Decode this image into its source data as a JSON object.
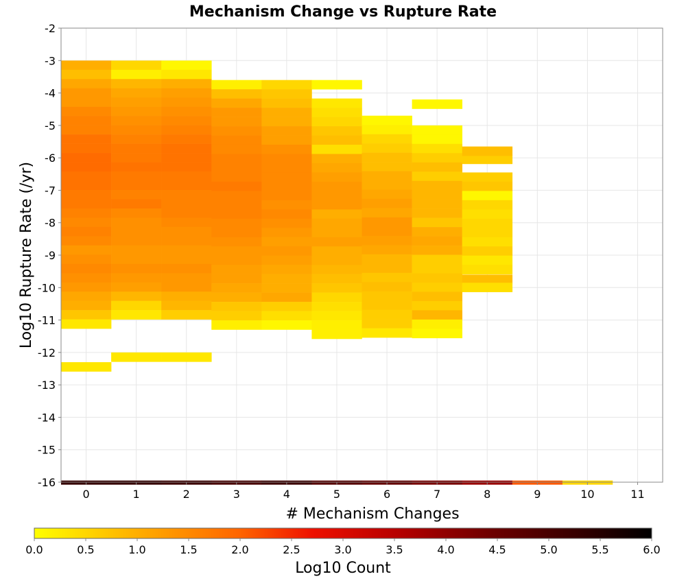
{
  "chart_data": {
    "type": "heatmap",
    "title": "Mechanism Change vs Rupture Rate",
    "xlabel": "# Mechanism Changes",
    "ylabel": "Log10 Rupture Rate (/yr)",
    "xlim": [
      -0.5,
      11.5
    ],
    "ylim": [
      -16,
      -2
    ],
    "x_ticks": [
      "0",
      "1",
      "2",
      "3",
      "4",
      "5",
      "6",
      "7",
      "8",
      "9",
      "10",
      "11"
    ],
    "y_ticks": [
      "-2",
      "-3",
      "-4",
      "-5",
      "-6",
      "-7",
      "-8",
      "-9",
      "-10",
      "-11",
      "-12",
      "-13",
      "-14",
      "-15",
      "-16"
    ],
    "grid": true,
    "bin_height": 0.285,
    "colorbar": {
      "label": "Log10 Count",
      "range": [
        0.0,
        6.0
      ],
      "ticks": [
        "0.0",
        "0.5",
        "1.0",
        "1.5",
        "2.0",
        "2.5",
        "3.0",
        "3.5",
        "4.0",
        "4.5",
        "5.0",
        "5.5",
        "6.0"
      ],
      "colors": [
        "#ffff00",
        "#ffae00",
        "#ff6400",
        "#ee1100",
        "#b80000",
        "#700000",
        "#340000",
        "#000000"
      ],
      "stops": [
        0.0,
        1.0,
        2.0,
        2.7,
        3.5,
        4.4,
        5.3,
        6.0
      ]
    },
    "columns": [
      {
        "x": 0,
        "top": -3.0,
        "values": [
          1.0,
          0.8,
          1.1,
          1.3,
          1.3,
          1.5,
          1.6,
          1.6,
          1.8,
          1.8,
          1.9,
          1.9,
          1.8,
          1.8,
          1.7,
          1.7,
          1.6,
          1.5,
          1.6,
          1.5,
          1.3,
          1.4,
          1.5,
          1.4,
          1.3,
          1.1,
          1.0,
          0.7,
          0.3
        ],
        "extra": [
          {
            "y": -12.3,
            "v": 0.3
          }
        ]
      },
      {
        "x": 1,
        "top": -3.0,
        "values": [
          0.5,
          0.2,
          0.9,
          1.1,
          1.2,
          1.3,
          1.4,
          1.5,
          1.6,
          1.7,
          1.7,
          1.8,
          1.7,
          1.7,
          1.6,
          1.7,
          1.5,
          1.4,
          1.4,
          1.4,
          1.3,
          1.3,
          1.4,
          1.3,
          1.2,
          0.9,
          0.5,
          0.3
        ],
        "extra": [
          {
            "y": -12.0,
            "v": 0.3
          }
        ]
      },
      {
        "x": 2,
        "top": -3.0,
        "values": [
          0.1,
          0.3,
          1.0,
          1.2,
          1.3,
          1.4,
          1.5,
          1.6,
          1.7,
          1.8,
          1.8,
          1.8,
          1.7,
          1.7,
          1.6,
          1.6,
          1.6,
          1.5,
          1.4,
          1.4,
          1.3,
          1.3,
          1.4,
          1.3,
          1.3,
          1.0,
          0.9,
          0.6
        ],
        "extra": [
          {
            "y": -12.0,
            "v": 0.3
          }
        ]
      },
      {
        "x": 3,
        "top": -3.6,
        "values": [
          0.2,
          0.8,
          1.1,
          1.3,
          1.3,
          1.4,
          1.5,
          1.5,
          1.6,
          1.6,
          1.6,
          1.7,
          1.6,
          1.6,
          1.6,
          1.5,
          1.5,
          1.4,
          1.3,
          1.3,
          1.2,
          1.2,
          1.1,
          1.0,
          0.7,
          0.6,
          0.2
        ],
        "extra": []
      },
      {
        "x": 4,
        "top": -3.6,
        "values": [
          0.5,
          0.7,
          0.8,
          1.0,
          1.0,
          1.2,
          1.2,
          1.4,
          1.5,
          1.5,
          1.5,
          1.5,
          1.5,
          1.4,
          1.5,
          1.4,
          1.3,
          1.2,
          1.3,
          1.2,
          1.1,
          1.0,
          1.0,
          1.1,
          0.6,
          0.4,
          0.1
        ],
        "extra": []
      },
      {
        "x": 5,
        "top": -3.6,
        "values": [
          0.1,
          -1,
          0.3,
          0.4,
          0.5,
          0.7,
          0.8,
          0.4,
          1.0,
          1.1,
          1.2,
          1.3,
          1.3,
          1.3,
          1.0,
          1.1,
          1.1,
          1.2,
          1.0,
          1.0,
          0.9,
          0.8,
          0.7,
          0.5,
          0.4,
          0.3,
          0.2,
          0.2
        ],
        "extra": []
      },
      {
        "x": 6,
        "top": -4.7,
        "values": [
          0.1,
          0.2,
          0.5,
          0.6,
          0.8,
          0.8,
          1.0,
          1.0,
          1.1,
          1.2,
          1.1,
          1.3,
          1.3,
          1.2,
          1.1,
          0.9,
          0.9,
          0.7,
          0.8,
          0.7,
          0.7,
          0.6,
          0.6,
          0.3
        ],
        "extra": []
      },
      {
        "x": 7,
        "top": -5.0,
        "values": [
          0.1,
          0.1,
          0.4,
          0.6,
          0.8,
          0.6,
          0.9,
          0.9,
          0.9,
          0.9,
          0.7,
          1.0,
          1.1,
          1.0,
          0.6,
          0.6,
          0.7,
          0.6,
          0.8,
          0.6,
          0.9,
          0.2,
          0.1
        ],
        "extra": [
          {
            "y": -4.2,
            "v": 0.1
          }
        ]
      },
      {
        "x": 8,
        "top": -6.45,
        "values": [
          0.6,
          0.7,
          0.1,
          0.5,
          0.4,
          0.5,
          0.5,
          0.4,
          0.6,
          0.3,
          0.4
        ],
        "extra": [
          {
            "y": -5.9,
            "v": 0.6
          },
          {
            "y": -5.65,
            "v": 0.8
          },
          {
            "y": -9.6,
            "v": 0.8
          },
          {
            "y": -9.85,
            "v": 0.4
          }
        ]
      }
    ],
    "bottom_row": {
      "y": -15.95,
      "values": [
        5.3,
        5.3,
        5.2,
        5.0,
        5.2,
        4.8,
        4.6,
        4.3,
        3.9,
        2.1,
        0.5
      ]
    }
  }
}
